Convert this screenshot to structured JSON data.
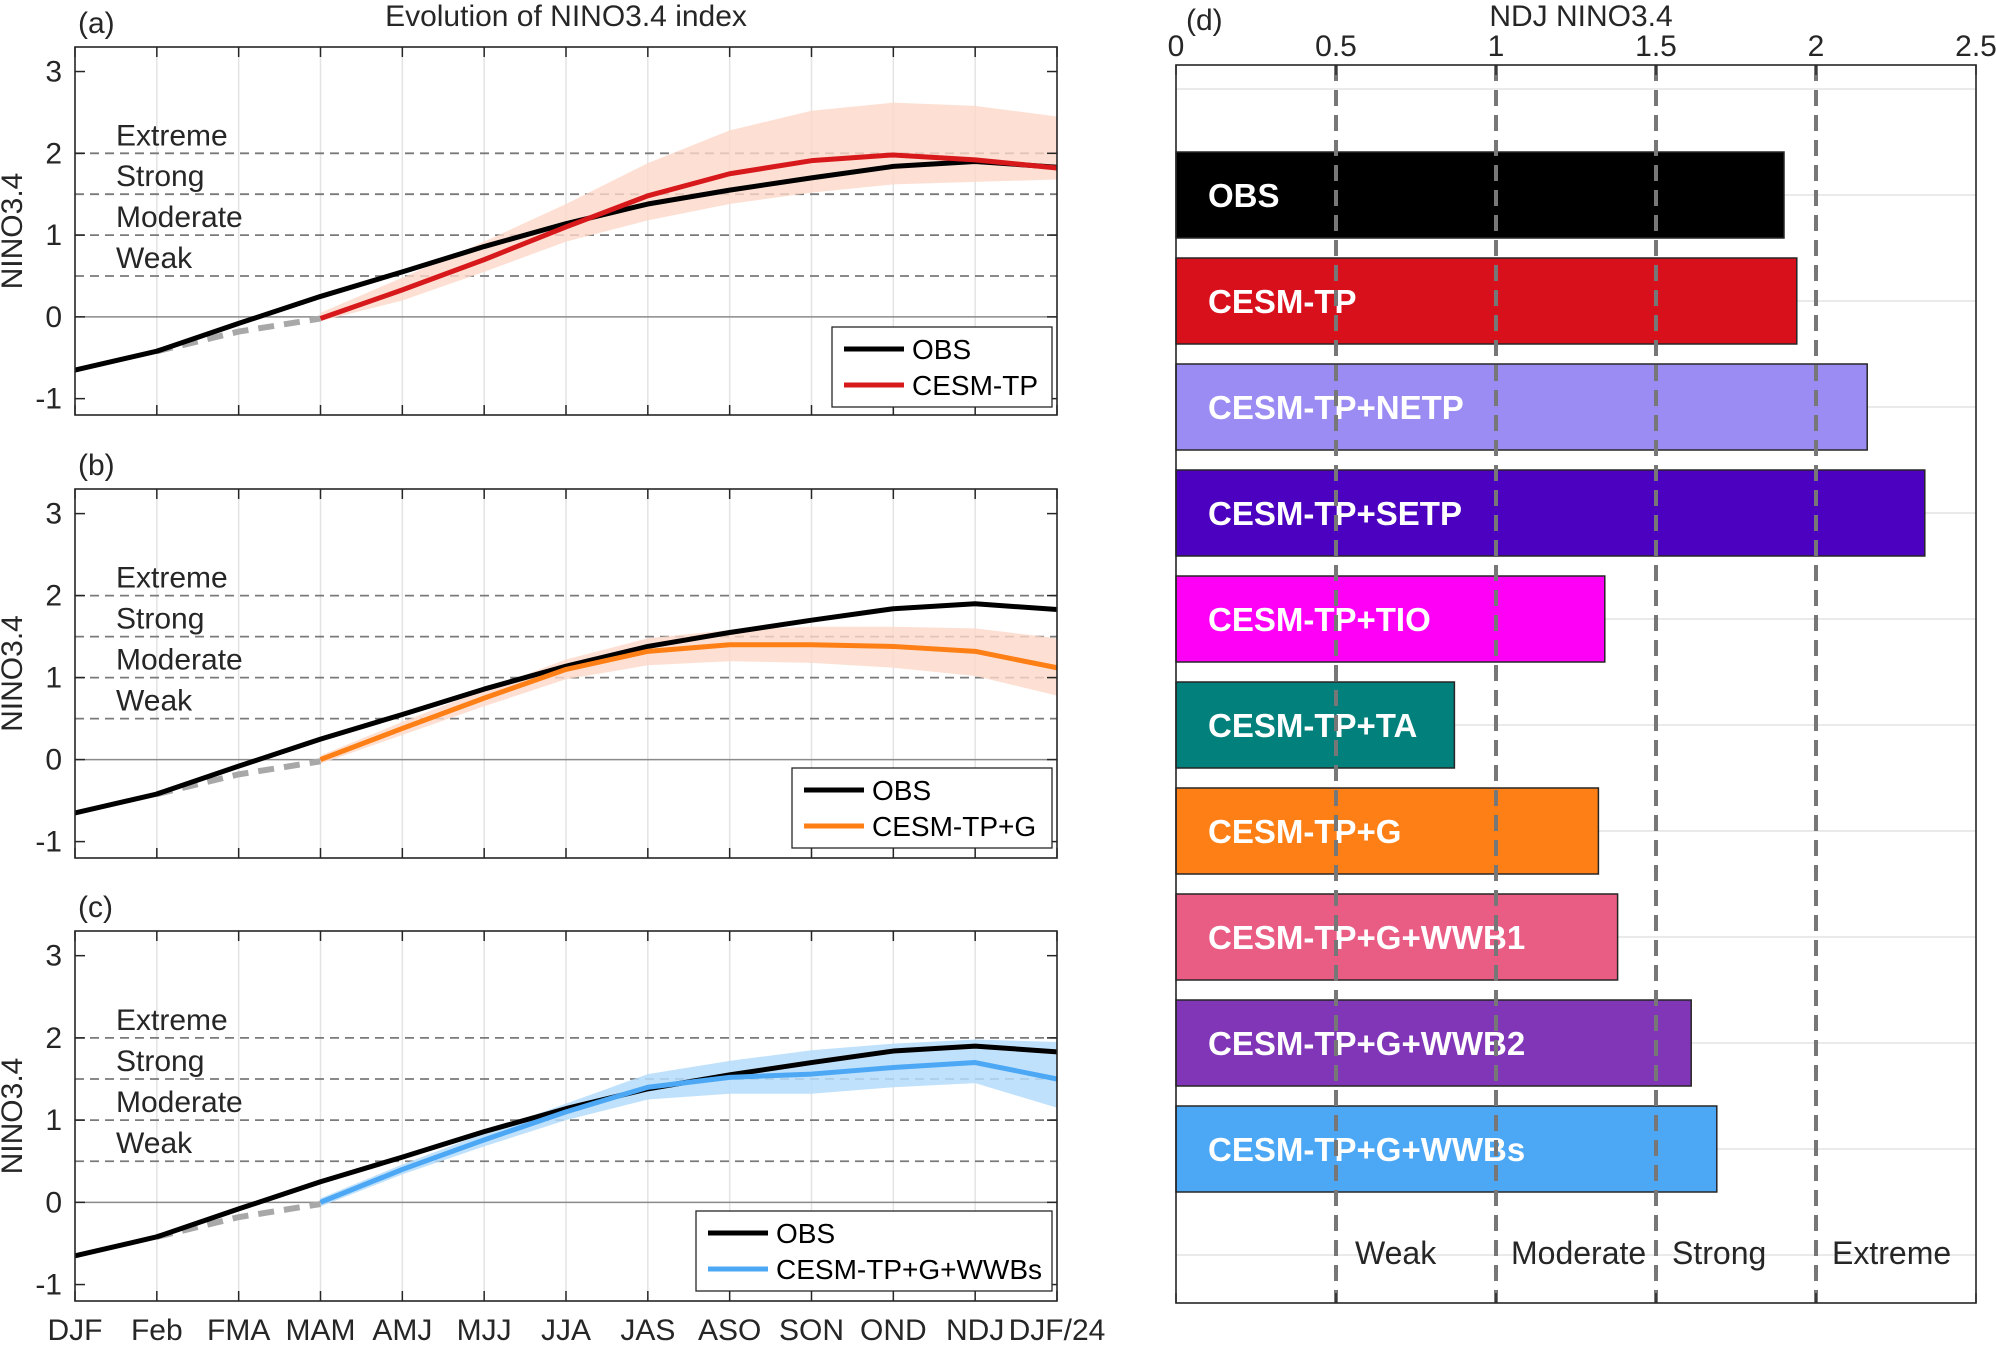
{
  "figure_title": "Evolution of NINO3.4 index",
  "panel_labels": [
    "(a)",
    "(b)",
    "(c)",
    "(d)"
  ],
  "colors": {
    "obs": "#000000",
    "cesm_tp": "#d7191c",
    "cesm_tp_g": "#fd7f16",
    "cesm_tp_g_wwbs": "#4ca8f5",
    "shade_warm": "#fcd8c8",
    "shade_blue": "#b5dcfa",
    "dashed_gray": "#a8a8a8"
  },
  "chart_data": [
    {
      "panel": "(a)",
      "type": "line",
      "title": "Evolution of NINO3.4 index",
      "ylabel": "NINO3.4",
      "ylim": [
        -1.2,
        3.3
      ],
      "yticks": [
        "-1",
        "0",
        "1",
        "2",
        "3"
      ],
      "categories": [
        "DJF",
        "Feb",
        "FMA",
        "MAM",
        "AMJ",
        "MJJ",
        "JJA",
        "JAS",
        "ASO",
        "SON",
        "OND",
        "NDJ",
        "DJF/24"
      ],
      "thresholds": [
        {
          "label": "Extreme",
          "value": 2.0
        },
        {
          "label": "Strong",
          "value": 1.5
        },
        {
          "label": "Moderate",
          "value": 1.0
        },
        {
          "label": "Weak",
          "value": 0.5
        }
      ],
      "obs_name": "OBS",
      "obs_values": [
        -0.65,
        -0.42,
        -0.08,
        0.25,
        0.55,
        0.86,
        1.14,
        1.38,
        1.55,
        1.7,
        1.84,
        1.9,
        1.83
      ],
      "bridge_values": [
        -0.42,
        -0.18,
        -0.02
      ],
      "model_name": "CESM-TP",
      "model_color": "#d7191c",
      "model_start": 3,
      "model_values": [
        -0.02,
        0.33,
        0.7,
        1.1,
        1.48,
        1.75,
        1.91,
        1.98,
        1.92,
        1.82
      ],
      "spread_upper": [
        0.05,
        0.48,
        0.92,
        1.38,
        1.88,
        2.28,
        2.52,
        2.62,
        2.58,
        2.45
      ],
      "spread_lower": [
        -0.05,
        0.2,
        0.55,
        0.92,
        1.18,
        1.38,
        1.52,
        1.62,
        1.65,
        1.68
      ]
    },
    {
      "panel": "(b)",
      "type": "line",
      "ylabel": "NINO3.4",
      "ylim": [
        -1.2,
        3.3
      ],
      "yticks": [
        "-1",
        "0",
        "1",
        "2",
        "3"
      ],
      "categories": [
        "DJF",
        "Feb",
        "FMA",
        "MAM",
        "AMJ",
        "MJJ",
        "JJA",
        "JAS",
        "ASO",
        "SON",
        "OND",
        "NDJ",
        "DJF/24"
      ],
      "thresholds": [
        {
          "label": "Extreme",
          "value": 2.0
        },
        {
          "label": "Strong",
          "value": 1.5
        },
        {
          "label": "Moderate",
          "value": 1.0
        },
        {
          "label": "Weak",
          "value": 0.5
        }
      ],
      "obs_name": "OBS",
      "obs_values": [
        -0.65,
        -0.42,
        -0.08,
        0.25,
        0.55,
        0.86,
        1.14,
        1.38,
        1.55,
        1.7,
        1.84,
        1.9,
        1.83
      ],
      "bridge_values": [
        -0.42,
        -0.18,
        -0.02
      ],
      "model_name": "CESM-TP+G",
      "model_color": "#fd7f16",
      "model_start": 3,
      "model_values": [
        0.0,
        0.38,
        0.75,
        1.1,
        1.32,
        1.4,
        1.4,
        1.38,
        1.32,
        1.12
      ],
      "spread_upper": [
        0.05,
        0.46,
        0.85,
        1.22,
        1.48,
        1.58,
        1.62,
        1.62,
        1.6,
        1.48
      ],
      "spread_lower": [
        -0.05,
        0.3,
        0.65,
        0.98,
        1.15,
        1.2,
        1.18,
        1.12,
        1.02,
        0.78
      ]
    },
    {
      "panel": "(c)",
      "type": "line",
      "ylabel": "NINO3.4",
      "ylim": [
        -1.2,
        3.3
      ],
      "yticks": [
        "-1",
        "0",
        "1",
        "2",
        "3"
      ],
      "categories": [
        "DJF",
        "Feb",
        "FMA",
        "MAM",
        "AMJ",
        "MJJ",
        "JJA",
        "JAS",
        "ASO",
        "SON",
        "OND",
        "NDJ",
        "DJF/24"
      ],
      "thresholds": [
        {
          "label": "Extreme",
          "value": 2.0
        },
        {
          "label": "Strong",
          "value": 1.5
        },
        {
          "label": "Moderate",
          "value": 1.0
        },
        {
          "label": "Weak",
          "value": 0.5
        }
      ],
      "obs_name": "OBS",
      "obs_values": [
        -0.65,
        -0.42,
        -0.08,
        0.25,
        0.55,
        0.86,
        1.14,
        1.38,
        1.55,
        1.7,
        1.84,
        1.9,
        1.83
      ],
      "bridge_values": [
        -0.42,
        -0.18,
        -0.02
      ],
      "model_name": "CESM-TP+G+WWBs",
      "model_color": "#4ca8f5",
      "model_start": 3,
      "model_values": [
        0.0,
        0.4,
        0.76,
        1.1,
        1.4,
        1.52,
        1.56,
        1.64,
        1.7,
        1.5
      ],
      "spread_upper": [
        0.05,
        0.46,
        0.84,
        1.2,
        1.56,
        1.72,
        1.85,
        1.93,
        1.98,
        1.95
      ],
      "spread_lower": [
        -0.05,
        0.34,
        0.68,
        1.0,
        1.25,
        1.32,
        1.32,
        1.4,
        1.45,
        1.15
      ]
    },
    {
      "panel": "(d)",
      "type": "bar",
      "orientation": "horizontal",
      "title": "NDJ NINO3.4",
      "xlim": [
        0,
        2.5
      ],
      "xticks": [
        "0",
        "0.5",
        "1",
        "1.5",
        "2",
        "2.5"
      ],
      "thresholds": [
        {
          "label": "Weak",
          "value": 0.5
        },
        {
          "label": "Moderate",
          "value": 1.0
        },
        {
          "label": "Strong",
          "value": 1.5
        },
        {
          "label": "Extreme",
          "value": 2.0
        }
      ],
      "categories": [
        "OBS",
        "CESM-TP",
        "CESM-TP+NETP",
        "CESM-TP+SETP",
        "CESM-TP+TIO",
        "CESM-TP+TA",
        "CESM-TP+G",
        "CESM-TP+G+WWB1",
        "CESM-TP+G+WWB2",
        "CESM-TP+G+WWBs"
      ],
      "values": [
        1.9,
        1.94,
        2.16,
        2.34,
        1.34,
        0.87,
        1.32,
        1.38,
        1.61,
        1.69
      ],
      "bar_colors": [
        "#000000",
        "#d7101c",
        "#9b8cf3",
        "#4d01c0",
        "#ff00f7",
        "#01807c",
        "#fd7f16",
        "#e95d85",
        "#8136b8",
        "#4ca8f5"
      ]
    }
  ]
}
